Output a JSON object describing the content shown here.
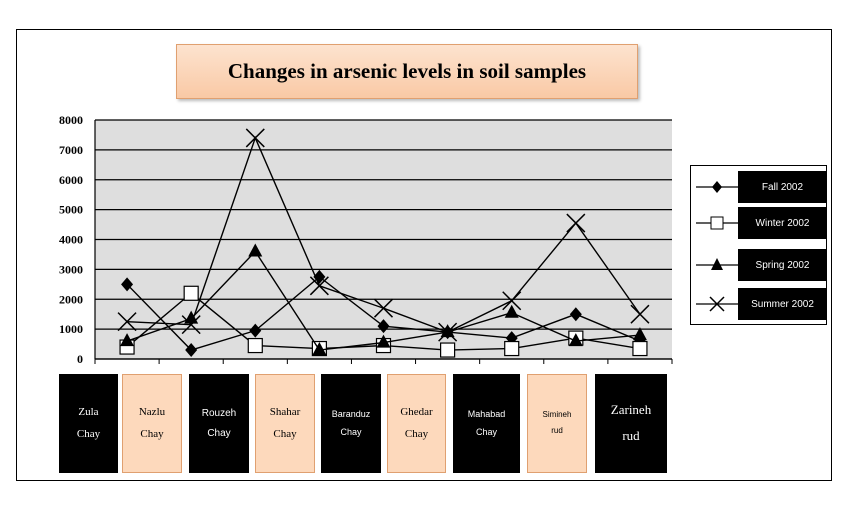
{
  "chart_data": {
    "type": "line",
    "title": "Changes in arsenic levels in soil samples",
    "categories": [
      {
        "line1": "Zula",
        "line2": "Chay"
      },
      {
        "line1": "Nazlu",
        "line2": "Chay"
      },
      {
        "line1": "Rouzeh",
        "line2": "Chay"
      },
      {
        "line1": "Shahar",
        "line2": "Chay"
      },
      {
        "line1": "Baranduz",
        "line2": "Chay"
      },
      {
        "line1": "Ghedar",
        "line2": "Chay"
      },
      {
        "line1": "Mahabad",
        "line2": "Chay"
      },
      {
        "line1": "Simineh",
        "line2": "rud"
      },
      {
        "line1": "Zarineh",
        "line2": "rud"
      }
    ],
    "series": [
      {
        "name": "Fall 2002",
        "marker": "diamond",
        "values": [
          2500,
          300,
          950,
          2750,
          1100,
          900,
          700,
          1500,
          600
        ]
      },
      {
        "name": "Winter 2002",
        "marker": "square",
        "values": [
          400,
          2200,
          450,
          350,
          450,
          300,
          350,
          700,
          350
        ]
      },
      {
        "name": "Spring 2002",
        "marker": "triangle",
        "values": [
          600,
          1350,
          3600,
          300,
          550,
          900,
          1550,
          600,
          800
        ]
      },
      {
        "name": "Summer 2002",
        "marker": "x",
        "values": [
          1250,
          1150,
          7400,
          2450,
          1700,
          900,
          1950,
          4550,
          1500
        ]
      }
    ],
    "yticks": [
      "0",
      "1000",
      "2000",
      "3000",
      "4000",
      "5000",
      "6000",
      "7000",
      "8000"
    ],
    "ylim": [
      0,
      8000
    ],
    "grid": true,
    "legend_position": "right"
  }
}
